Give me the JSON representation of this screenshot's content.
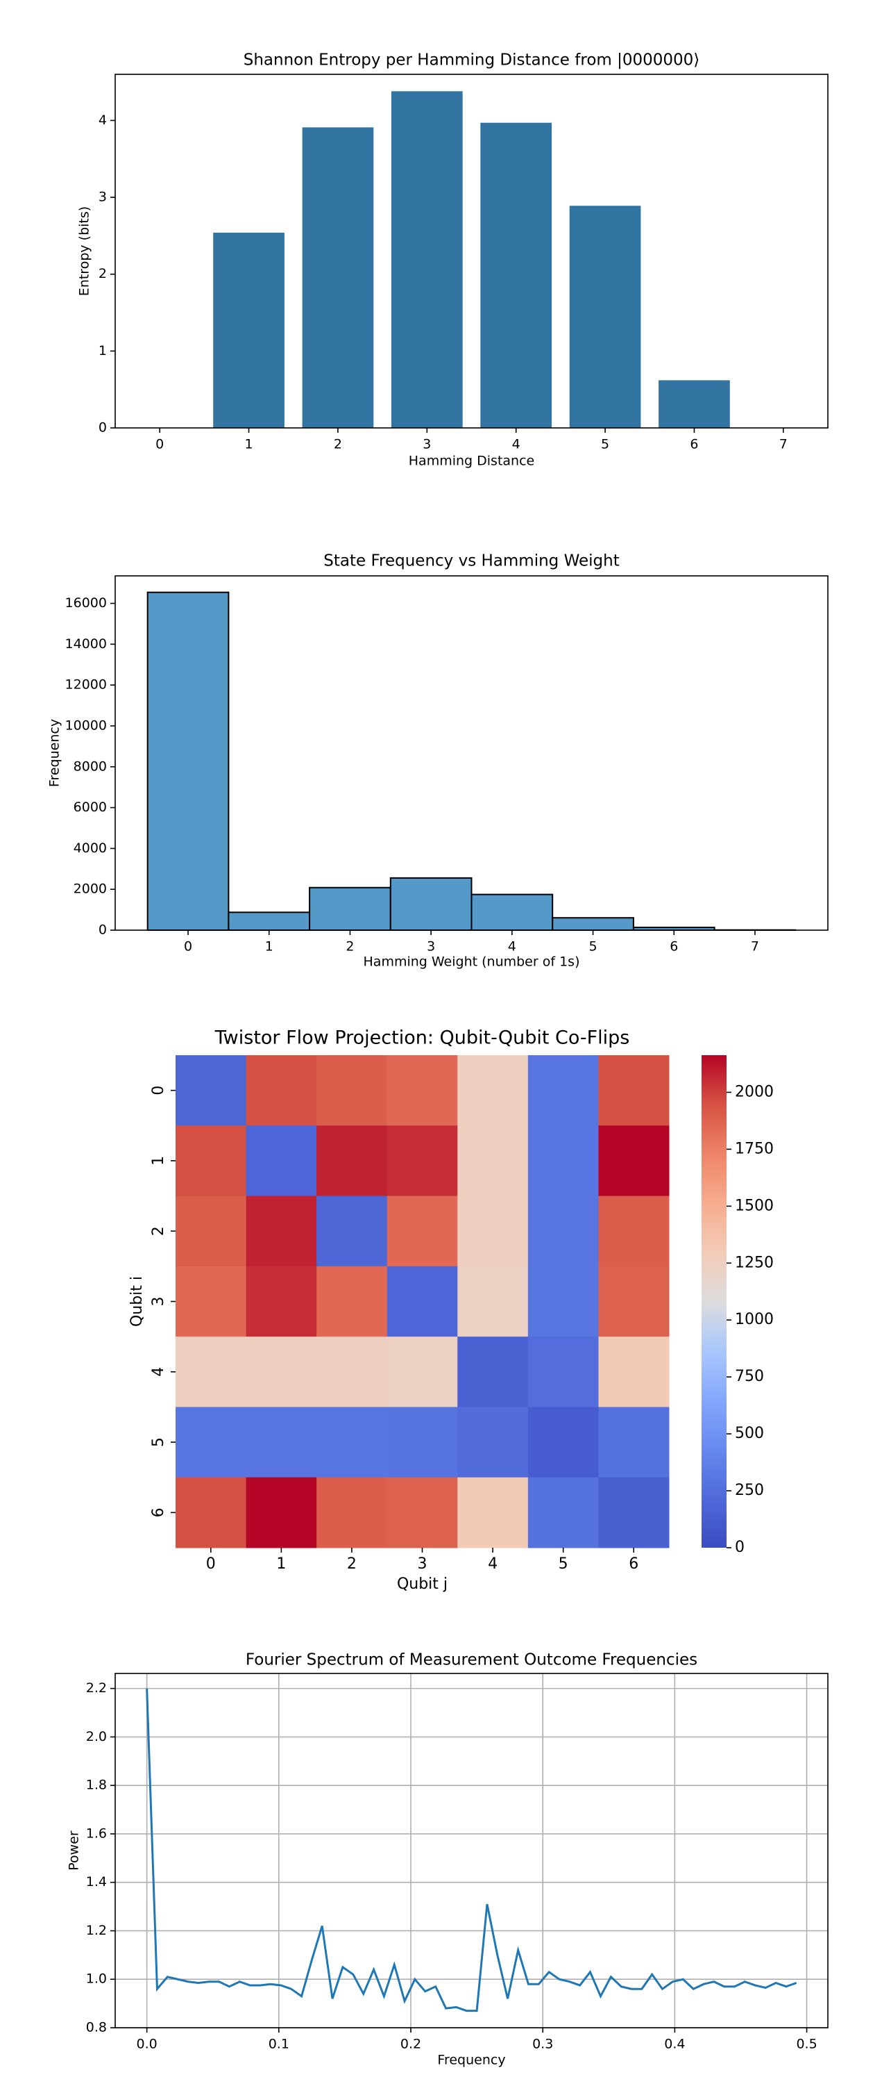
{
  "chart_data": [
    {
      "type": "bar",
      "title": "Shannon Entropy per Hamming Distance from |0000000⟩",
      "xlabel": "Hamming Distance",
      "ylabel": "Entropy (bits)",
      "categories": [
        "0",
        "1",
        "2",
        "3",
        "4",
        "5",
        "6",
        "7"
      ],
      "values": [
        0,
        2.54,
        3.91,
        4.38,
        3.97,
        2.89,
        0.62,
        0
      ],
      "color": "#3274a1",
      "ylim": [
        0,
        4.6
      ],
      "yticks": [
        0,
        1,
        2,
        3,
        4
      ],
      "grid": false
    },
    {
      "type": "histogram",
      "title": "State Frequency vs Hamming Weight",
      "xlabel": "Hamming Weight (number of 1s)",
      "ylabel": "Frequency",
      "bins": [
        -0.5,
        0.5,
        1.5,
        2.5,
        3.5,
        4.5,
        5.5,
        6.5,
        7.5
      ],
      "values": [
        16540,
        874,
        2084,
        2555,
        1748,
        605,
        134,
        10
      ],
      "color": "#5499c7",
      "edgecolor": "#000000",
      "xlim": [
        -0.9,
        7.9
      ],
      "xticks": [
        0,
        1,
        2,
        3,
        4,
        5,
        6,
        7
      ],
      "ylim": [
        0,
        17345
      ],
      "yticks": [
        0,
        2000,
        4000,
        6000,
        8000,
        10000,
        12000,
        14000,
        16000
      ],
      "grid": false
    },
    {
      "type": "heatmap",
      "title": "Twistor Flow Projection: Qubit-Qubit Co-Flips",
      "xlabel": "Qubit j",
      "ylabel": "Qubit i",
      "x_categories": [
        "0",
        "1",
        "2",
        "3",
        "4",
        "5",
        "6"
      ],
      "y_categories": [
        "0",
        "1",
        "2",
        "3",
        "4",
        "5",
        "6"
      ],
      "values": [
        [
          200,
          1950,
          1900,
          1850,
          1250,
          300,
          1950
        ],
        [
          1950,
          190,
          2080,
          2050,
          1250,
          300,
          2160
        ],
        [
          1900,
          2080,
          200,
          1850,
          1250,
          300,
          1900
        ],
        [
          1850,
          2050,
          1850,
          190,
          1230,
          300,
          1880
        ],
        [
          1250,
          1250,
          1250,
          1230,
          160,
          250,
          1300
        ],
        [
          300,
          300,
          300,
          290,
          240,
          130,
          270
        ],
        [
          1950,
          2160,
          1900,
          1880,
          1300,
          270,
          150
        ]
      ],
      "colormap": "coolwarm",
      "clim": [
        0,
        2163
      ],
      "colorbar_ticks": [
        0,
        250,
        500,
        750,
        1000,
        1250,
        1500,
        1750,
        2000
      ]
    },
    {
      "type": "line",
      "title": "Fourier Spectrum of Measurement Outcome Frequencies",
      "xlabel": "Frequency",
      "ylabel": "Power",
      "series": [
        {
          "color": "#1f77b4",
          "x": [
            0,
            0.0078,
            0.0156,
            0.0234,
            0.0313,
            0.0391,
            0.0469,
            0.0547,
            0.0625,
            0.0703,
            0.0781,
            0.0859,
            0.0938,
            0.1016,
            0.1094,
            0.1172,
            0.125,
            0.1328,
            0.1406,
            0.1484,
            0.1563,
            0.1641,
            0.1719,
            0.1797,
            0.1875,
            0.1953,
            0.2031,
            0.2109,
            0.2188,
            0.2266,
            0.2344,
            0.2422,
            0.25,
            0.2578,
            0.2656,
            0.2734,
            0.2813,
            0.2891,
            0.2969,
            0.3047,
            0.3125,
            0.3203,
            0.3281,
            0.3359,
            0.3438,
            0.3516,
            0.3594,
            0.3672,
            0.375,
            0.3828,
            0.3906,
            0.3984,
            0.4063,
            0.4141,
            0.4219,
            0.4297,
            0.4375,
            0.4453,
            0.4531,
            0.4609,
            0.4688,
            0.4766,
            0.4844,
            0.4922
          ],
          "values": [
            2.2,
            0.96,
            1.01,
            1.0,
            0.99,
            0.985,
            0.99,
            0.99,
            0.97,
            0.99,
            0.975,
            0.975,
            0.98,
            0.975,
            0.96,
            0.93,
            1.08,
            1.22,
            0.92,
            1.05,
            1.02,
            0.94,
            1.04,
            0.93,
            1.06,
            0.91,
            1.0,
            0.95,
            0.97,
            0.88,
            0.885,
            0.87,
            0.87,
            1.31,
            1.1,
            0.92,
            1.12,
            0.98,
            0.98,
            1.03,
            1.0,
            0.99,
            0.975,
            1.03,
            0.93,
            1.01,
            0.97,
            0.96,
            0.96,
            1.02,
            0.96,
            0.99,
            1.0,
            0.96,
            0.98,
            0.99,
            0.97,
            0.97,
            0.99,
            0.975,
            0.965,
            0.985,
            0.97,
            0.985
          ]
        }
      ],
      "xlim": [
        -0.024,
        0.516
      ],
      "xticks": [
        {
          "value": 0,
          "label": "0.0"
        },
        0.1,
        0.2,
        0.3,
        0.4,
        0.5
      ],
      "ylim": [
        0.8,
        2.262
      ],
      "yticks": [
        0.8,
        {
          "value": 1,
          "label": "1.0"
        },
        1.2,
        1.4,
        1.6,
        1.8,
        {
          "value": 2,
          "label": "2.0"
        },
        2.2
      ],
      "grid": true
    }
  ]
}
